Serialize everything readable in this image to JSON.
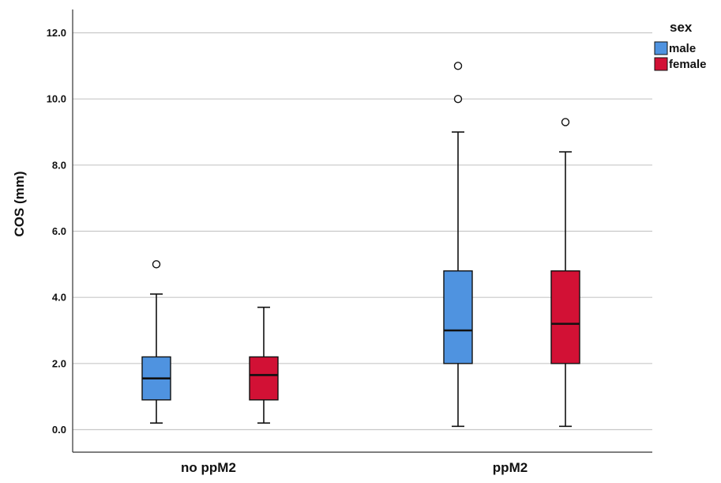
{
  "chart_data": {
    "type": "boxplot",
    "ylabel": "COS (mm)",
    "xlabel": "",
    "ylim": [
      -0.7,
      12.7
    ],
    "yticks": [
      0,
      2,
      4,
      6,
      8,
      10,
      12
    ],
    "ytick_labels": [
      "0.0",
      "2.0",
      "4.0",
      "6.0",
      "8.0",
      "10.0",
      "12.0"
    ],
    "grid": true,
    "categories": [
      "no ppM2",
      "ppM2"
    ],
    "legend": {
      "title": "sex",
      "placement": "top-right",
      "entries": [
        {
          "name": "male",
          "color": "#4f93e0"
        },
        {
          "name": "female",
          "color": "#d21135"
        }
      ]
    },
    "series": [
      {
        "name": "male",
        "color": "#4f93e0",
        "boxes": [
          {
            "category": "no ppM2",
            "whisker_low": 0.2,
            "q1": 0.9,
            "median": 1.55,
            "q3": 2.2,
            "whisker_high": 4.1,
            "outliers": [
              5.0
            ]
          },
          {
            "category": "ppM2",
            "whisker_low": 0.1,
            "q1": 2.0,
            "median": 3.0,
            "q3": 4.8,
            "whisker_high": 9.0,
            "outliers": [
              10.0,
              11.0
            ]
          }
        ]
      },
      {
        "name": "female",
        "color": "#d21135",
        "boxes": [
          {
            "category": "no ppM2",
            "whisker_low": 0.2,
            "q1": 0.9,
            "median": 1.65,
            "q3": 2.2,
            "whisker_high": 3.7,
            "outliers": []
          },
          {
            "category": "ppM2",
            "whisker_low": 0.1,
            "q1": 2.0,
            "median": 3.2,
            "q3": 4.8,
            "whisker_high": 8.4,
            "outliers": [
              9.3
            ]
          }
        ]
      }
    ]
  }
}
